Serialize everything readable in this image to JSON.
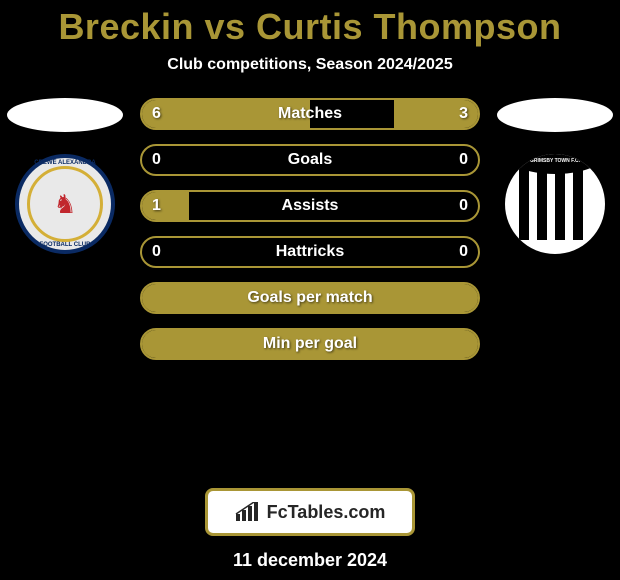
{
  "title": "Breckin vs Curtis Thompson",
  "subtitle": "Club competitions, Season 2024/2025",
  "date": "11 december 2024",
  "colors": {
    "accent": "#a99636",
    "bg": "#000000",
    "text": "#ffffff",
    "attrib_bg": "#ffffff",
    "attrib_text": "#262626"
  },
  "player_left": {
    "name": "Breckin",
    "club": "Crewe Alexandra",
    "badge_text_top": "CREWE ALEXANDRA",
    "badge_text_bottom": "FOOTBALL CLUB"
  },
  "player_right": {
    "name": "Curtis Thompson",
    "club": "Grimsby Town",
    "badge_arc_text": "GRIMSBY TOWN F.C."
  },
  "attribution": "FcTables.com",
  "stats": [
    {
      "label": "Matches",
      "left_val": "6",
      "right_val": "3",
      "left_pct": 50,
      "right_pct": 25
    },
    {
      "label": "Goals",
      "left_val": "0",
      "right_val": "0",
      "left_pct": 0,
      "right_pct": 0
    },
    {
      "label": "Assists",
      "left_val": "1",
      "right_val": "0",
      "left_pct": 14,
      "right_pct": 0
    },
    {
      "label": "Hattricks",
      "left_val": "0",
      "right_val": "0",
      "left_pct": 0,
      "right_pct": 0
    },
    {
      "label": "Goals per match",
      "left_val": "",
      "right_val": "",
      "left_pct": 100,
      "right_pct": 0
    },
    {
      "label": "Min per goal",
      "left_val": "",
      "right_val": "",
      "left_pct": 100,
      "right_pct": 0
    }
  ]
}
